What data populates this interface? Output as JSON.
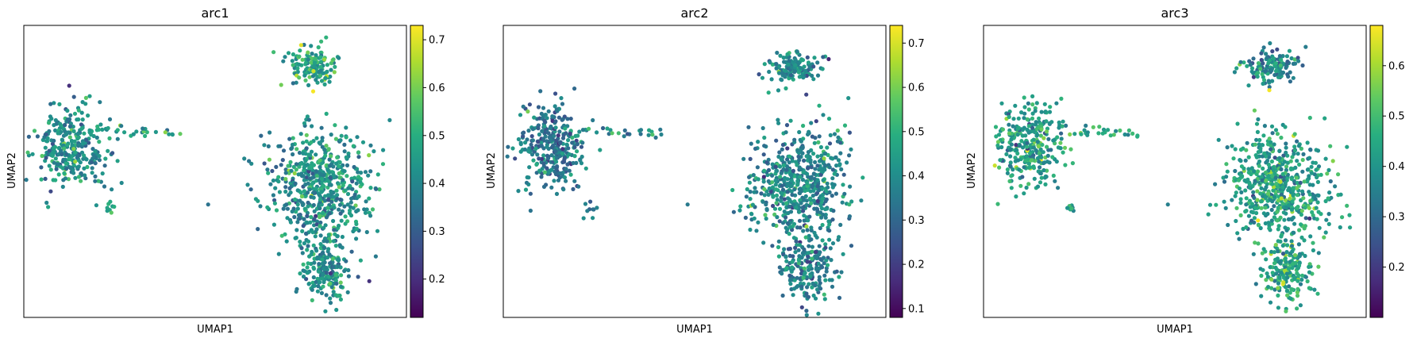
{
  "chart_data": [
    {
      "type": "scatter",
      "title": "arc1",
      "xlabel": "UMAP1",
      "ylabel": "UMAP2",
      "colorbar": {
        "colormap": "viridis",
        "range": [
          0.12,
          0.73
        ],
        "ticks": [
          0.2,
          0.3,
          0.4,
          0.5,
          0.6,
          0.7
        ],
        "tick_labels": [
          "0.2",
          "0.3",
          "0.4",
          "0.5",
          "0.6",
          "0.7"
        ]
      },
      "clusters": [
        {
          "name": "top-right blob",
          "center": [
            15.6,
            17.1
          ],
          "spread": [
            1.0,
            0.6
          ],
          "n": 140,
          "color_mean": 0.47
        },
        {
          "name": "left blob",
          "center": [
            1.7,
            13.0
          ],
          "spread": [
            1.3,
            1.4
          ],
          "n": 300,
          "color_mean": 0.42
        },
        {
          "name": "bridge",
          "from": [
            3.3,
            13.9
          ],
          "to": [
            8.3,
            13.6
          ],
          "n": 26,
          "color_mean": 0.45
        },
        {
          "name": "small satellite",
          "center": [
            4.0,
            9.8
          ],
          "spread": [
            0.2,
            0.2
          ],
          "n": 8,
          "color_mean": 0.45
        },
        {
          "name": "lower-right lobe",
          "center": [
            16.0,
            11.0
          ],
          "spread": [
            1.9,
            1.9
          ],
          "n": 560,
          "color_mean": 0.42
        },
        {
          "name": "lower-right tail",
          "center": [
            16.4,
            6.7
          ],
          "spread": [
            1.0,
            1.2
          ],
          "n": 200,
          "color_mean": 0.42
        }
      ],
      "outliers": [
        [
          9.6,
          10.0
        ],
        [
          2.3,
          11.6
        ],
        [
          3.1,
          11.2
        ],
        [
          14.1,
          10.0
        ]
      ]
    },
    {
      "type": "scatter",
      "title": "arc2",
      "xlabel": "UMAP1",
      "ylabel": "UMAP2",
      "colorbar": {
        "colormap": "viridis",
        "range": [
          0.08,
          0.74
        ],
        "ticks": [
          0.1,
          0.2,
          0.3,
          0.4,
          0.5,
          0.6,
          0.7
        ],
        "tick_labels": [
          "0.1",
          "0.2",
          "0.3",
          "0.4",
          "0.5",
          "0.6",
          "0.7"
        ]
      },
      "clusters": [
        {
          "name": "top-right blob",
          "center": [
            15.6,
            17.1
          ],
          "spread": [
            1.0,
            0.6
          ],
          "n": 140,
          "color_mean": 0.38
        },
        {
          "name": "left blob",
          "center": [
            1.7,
            13.0
          ],
          "spread": [
            1.3,
            1.4
          ],
          "n": 300,
          "color_mean": 0.34
        },
        {
          "name": "bridge",
          "from": [
            3.3,
            13.9
          ],
          "to": [
            8.3,
            13.6
          ],
          "n": 26,
          "color_mean": 0.36
        },
        {
          "name": "small satellite",
          "center": [
            4.0,
            9.8
          ],
          "spread": [
            0.2,
            0.2
          ],
          "n": 8,
          "color_mean": 0.34
        },
        {
          "name": "lower-right lobe",
          "center": [
            16.0,
            11.0
          ],
          "spread": [
            1.9,
            1.9
          ],
          "n": 560,
          "color_mean": 0.38
        },
        {
          "name": "lower-right tail",
          "center": [
            16.4,
            6.7
          ],
          "spread": [
            1.0,
            1.2
          ],
          "n": 200,
          "color_mean": 0.35
        }
      ],
      "outliers": [
        [
          9.6,
          10.0
        ],
        [
          2.3,
          11.6
        ],
        [
          3.1,
          11.2
        ],
        [
          14.1,
          10.0
        ]
      ]
    },
    {
      "type": "scatter",
      "title": "arc3",
      "xlabel": "UMAP1",
      "ylabel": "UMAP2",
      "colorbar": {
        "colormap": "viridis",
        "range": [
          0.1,
          0.68
        ],
        "ticks": [
          0.2,
          0.3,
          0.4,
          0.5,
          0.6
        ],
        "tick_labels": [
          "0.2",
          "0.3",
          "0.4",
          "0.5",
          "0.6"
        ]
      },
      "clusters": [
        {
          "name": "top-right blob",
          "center": [
            15.6,
            17.1
          ],
          "spread": [
            1.0,
            0.6
          ],
          "n": 140,
          "color_mean": 0.36
        },
        {
          "name": "left blob",
          "center": [
            1.7,
            13.0
          ],
          "spread": [
            1.3,
            1.4
          ],
          "n": 300,
          "color_mean": 0.42
        },
        {
          "name": "bridge",
          "from": [
            3.3,
            13.9
          ],
          "to": [
            8.3,
            13.6
          ],
          "n": 26,
          "color_mean": 0.44
        },
        {
          "name": "small satellite",
          "center": [
            4.0,
            9.8
          ],
          "spread": [
            0.2,
            0.2
          ],
          "n": 8,
          "color_mean": 0.45
        },
        {
          "name": "lower-right lobe",
          "center": [
            16.0,
            11.0
          ],
          "spread": [
            1.9,
            1.9
          ],
          "n": 560,
          "color_mean": 0.42
        },
        {
          "name": "lower-right tail",
          "center": [
            16.4,
            6.7
          ],
          "spread": [
            1.0,
            1.2
          ],
          "n": 200,
          "color_mean": 0.44
        }
      ],
      "outliers": [
        [
          9.6,
          10.0
        ],
        [
          2.3,
          11.6
        ],
        [
          3.1,
          11.2
        ],
        [
          14.1,
          10.0
        ]
      ]
    }
  ]
}
